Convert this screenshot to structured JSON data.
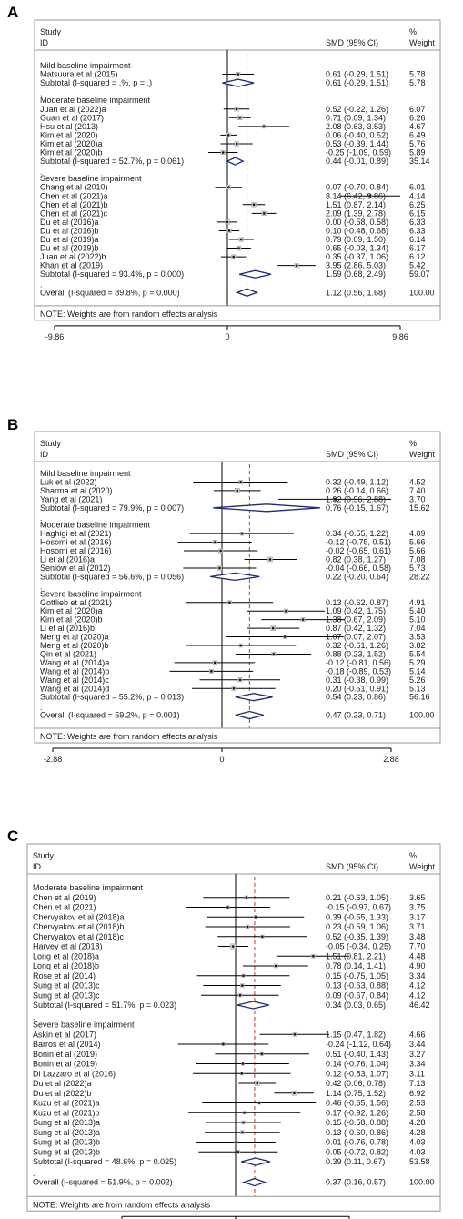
{
  "chart_data": [
    {
      "type": "forest",
      "panel": "A",
      "header": {
        "study": "Study",
        "id": "ID",
        "smd": "SMD (95% CI)",
        "pct": "%",
        "weight": "Weight"
      },
      "xticks": [
        "-9.86",
        "0",
        "9.86"
      ],
      "xlim": [
        -9.86,
        9.86
      ],
      "overall_value": 1.12,
      "note": "NOTE: Weights are from random effects analysis",
      "groups": [
        {
          "title": "Mild baseline impairment",
          "studies": [
            {
              "label": "Matsuura et al (2015)",
              "est": 0.61,
              "lo": -0.29,
              "hi": 1.51,
              "ci": "0.61 (-0.29, 1.51)",
              "weight": "5.78"
            }
          ],
          "subtotal": {
            "label": "Subtotal  (I-squared = .%, p = .)",
            "est": 0.61,
            "lo": -0.29,
            "hi": 1.51,
            "ci": "0.61 (-0.29, 1.51)",
            "weight": "5.78"
          }
        },
        {
          "title": "Moderate baseline impairment",
          "studies": [
            {
              "label": "Juan et al (2022)a",
              "est": 0.52,
              "lo": -0.22,
              "hi": 1.26,
              "ci": "0.52 (-0.22, 1.26)",
              "weight": "6.07"
            },
            {
              "label": "Guan et al (2017)",
              "est": 0.71,
              "lo": 0.09,
              "hi": 1.34,
              "ci": "0.71 (0.09, 1.34)",
              "weight": "6.26"
            },
            {
              "label": "Hsu et al (2013)",
              "est": 2.08,
              "lo": 0.63,
              "hi": 3.53,
              "ci": "2.08 (0.63, 3.53)",
              "weight": "4.67"
            },
            {
              "label": "Kim et al (2020)",
              "est": 0.06,
              "lo": -0.4,
              "hi": 0.52,
              "ci": "0.06 (-0.40, 0.52)",
              "weight": "6.49"
            },
            {
              "label": "Kim et al (2020)a",
              "est": 0.53,
              "lo": -0.39,
              "hi": 1.44,
              "ci": "0.53 (-0.39, 1.44)",
              "weight": "5.76"
            },
            {
              "label": "Kim et al (2020)b",
              "est": -0.25,
              "lo": -1.09,
              "hi": 0.59,
              "ci": "-0.25 (-1.09, 0.59)",
              "weight": "5.89"
            }
          ],
          "subtotal": {
            "label": "Subtotal  (I-squared = 52.7%, p = 0.061)",
            "est": 0.44,
            "lo": -0.01,
            "hi": 0.89,
            "ci": "0.44 (-0.01, 0.89)",
            "weight": "35.14"
          }
        },
        {
          "title": "Severe baseline impairment",
          "studies": [
            {
              "label": "Chang et al (2010)",
              "est": 0.07,
              "lo": -0.7,
              "hi": 0.84,
              "ci": "0.07 (-0.70, 0.84)",
              "weight": "6.01"
            },
            {
              "label": "Chen et al (2021)a",
              "est": 8.14,
              "lo": 6.42,
              "hi": 9.86,
              "ci": "8.14 (6.42, 9.86)",
              "weight": "4.14"
            },
            {
              "label": "Chen et al (2021)b",
              "est": 1.51,
              "lo": 0.87,
              "hi": 2.14,
              "ci": "1.51 (0.87, 2.14)",
              "weight": "6.25"
            },
            {
              "label": "Chen et al (2021)c",
              "est": 2.09,
              "lo": 1.39,
              "hi": 2.78,
              "ci": "2.09 (1.39, 2.78)",
              "weight": "6.15"
            },
            {
              "label": "Du et al (2016)a",
              "est": 0.0,
              "lo": -0.58,
              "hi": 0.58,
              "ci": "0.00 (-0.58, 0.58)",
              "weight": "6.33"
            },
            {
              "label": "Du et al (2016)b",
              "est": 0.1,
              "lo": -0.48,
              "hi": 0.68,
              "ci": "0.10 (-0.48, 0.68)",
              "weight": "6.33"
            },
            {
              "label": "Du et al (2019)a",
              "est": 0.79,
              "lo": 0.09,
              "hi": 1.5,
              "ci": "0.79 (0.09, 1.50)",
              "weight": "6.14"
            },
            {
              "label": "Du et al (2019)b",
              "est": 0.65,
              "lo": -0.03,
              "hi": 1.34,
              "ci": "0.65 (-0.03, 1.34)",
              "weight": "6.17"
            },
            {
              "label": "Juan et al (2022)b",
              "est": 0.35,
              "lo": -0.37,
              "hi": 1.06,
              "ci": "0.35 (-0.37, 1.06)",
              "weight": "6.12"
            },
            {
              "label": "Khan et al (2019)",
              "est": 3.95,
              "lo": 2.86,
              "hi": 5.03,
              "ci": "3.95 (2.86, 5.03)",
              "weight": "5.42"
            }
          ],
          "subtotal": {
            "label": "Subtotal  (I-squared = 93.4%, p = 0.000)",
            "est": 1.59,
            "lo": 0.68,
            "hi": 2.49,
            "ci": "1.59 (0.68, 2.49)",
            "weight": "59.07"
          }
        }
      ],
      "overall": {
        "label": "Overall  (I-squared = 89.8%, p = 0.000)",
        "est": 1.12,
        "lo": 0.56,
        "hi": 1.68,
        "ci": "1.12 (0.56, 1.68)",
        "weight": "100.00"
      }
    },
    {
      "type": "forest",
      "panel": "B",
      "header": {
        "study": "Study",
        "id": "ID",
        "smd": "SMD (95% CI)",
        "pct": "%",
        "weight": "Weight"
      },
      "xticks": [
        "-2.88",
        "0",
        "2.88"
      ],
      "xlim": [
        -2.88,
        2.88
      ],
      "overall_value": 0.47,
      "note": "NOTE: Weights are from random effects analysis",
      "groups": [
        {
          "title": "Mild baseline impairment",
          "studies": [
            {
              "label": "Luk et al (2022)",
              "est": 0.32,
              "lo": -0.49,
              "hi": 1.12,
              "ci": "0.32 (-0.49, 1.12)",
              "weight": "4.52"
            },
            {
              "label": "Sharma et al (2020)",
              "est": 0.26,
              "lo": -0.14,
              "hi": 0.66,
              "ci": "0.26 (-0.14, 0.66)",
              "weight": "7.40"
            },
            {
              "label": "Yang et al (2021)",
              "est": 1.92,
              "lo": 0.96,
              "hi": 2.88,
              "ci": "1.92 (0.96, 2.88)",
              "weight": "3.70"
            }
          ],
          "subtotal": {
            "label": "Subtotal  (I-squared = 79.9%, p = 0.007)",
            "est": 0.76,
            "lo": -0.15,
            "hi": 1.67,
            "ci": "0.76 (-0.15, 1.67)",
            "weight": "15.62"
          }
        },
        {
          "title": "Moderate baseline impairment",
          "studies": [
            {
              "label": "Haghigi et al (2021)",
              "est": 0.34,
              "lo": -0.55,
              "hi": 1.22,
              "ci": "0.34 (-0.55, 1.22)",
              "weight": "4.09"
            },
            {
              "label": "Hosomi et al (2016)",
              "est": -0.12,
              "lo": -0.75,
              "hi": 0.51,
              "ci": "-0.12 (-0.75, 0.51)",
              "weight": "5.66"
            },
            {
              "label": "Hosomi et al (2016)",
              "est": -0.02,
              "lo": -0.65,
              "hi": 0.61,
              "ci": "-0.02 (-0.65, 0.61)",
              "weight": "5.66"
            },
            {
              "label": "Li et al (2016)a",
              "est": 0.82,
              "lo": 0.38,
              "hi": 1.27,
              "ci": "0.82 (0.38, 1.27)",
              "weight": "7.08"
            },
            {
              "label": "Seniów et al (2012)",
              "est": -0.04,
              "lo": -0.66,
              "hi": 0.58,
              "ci": "-0.04 (-0.66, 0.58)",
              "weight": "5.73"
            }
          ],
          "subtotal": {
            "label": "Subtotal  (I-squared = 56.6%, p = 0.056)",
            "est": 0.22,
            "lo": -0.2,
            "hi": 0.64,
            "ci": "0.22 (-0.20, 0.64)",
            "weight": "28.22"
          }
        },
        {
          "title": "Severe baseline impairment",
          "studies": [
            {
              "label": "Gottlieb et al (2021)",
              "est": 0.13,
              "lo": -0.62,
              "hi": 0.87,
              "ci": "0.13 (-0.62, 0.87)",
              "weight": "4.91"
            },
            {
              "label": "Kim et al (2020)a",
              "est": 1.09,
              "lo": 0.42,
              "hi": 1.75,
              "ci": "1.09 (0.42, 1.75)",
              "weight": "5.40"
            },
            {
              "label": "Kim et al (2020)b",
              "est": 1.38,
              "lo": 0.67,
              "hi": 2.09,
              "ci": "1.38 (0.67, 2.09)",
              "weight": "5.10"
            },
            {
              "label": "Li et al (2016)b",
              "est": 0.87,
              "lo": 0.42,
              "hi": 1.32,
              "ci": "0.87 (0.42, 1.32)",
              "weight": "7.04"
            },
            {
              "label": "Meng et al (2020)a",
              "est": 1.07,
              "lo": 0.07,
              "hi": 2.07,
              "ci": "1.07 (0.07, 2.07)",
              "weight": "3.53"
            },
            {
              "label": "Meng et al (2020)b",
              "est": 0.32,
              "lo": -0.61,
              "hi": 1.26,
              "ci": "0.32 (-0.61, 1.26)",
              "weight": "3.82"
            },
            {
              "label": "Qin et al (2021)",
              "est": 0.88,
              "lo": 0.23,
              "hi": 1.52,
              "ci": "0.88 (0.23, 1.52)",
              "weight": "5.54"
            },
            {
              "label": "Wang et al (2014)a",
              "est": -0.12,
              "lo": -0.81,
              "hi": 0.56,
              "ci": "-0.12 (-0.81, 0.56)",
              "weight": "5.29"
            },
            {
              "label": "Wang et al (2014)b",
              "est": -0.18,
              "lo": -0.89,
              "hi": 0.53,
              "ci": "-0.18 (-0.89, 0.53)",
              "weight": "5.14"
            },
            {
              "label": "Wang et al (2014)c",
              "est": 0.31,
              "lo": -0.38,
              "hi": 0.99,
              "ci": "0.31 (-0.38, 0.99)",
              "weight": "5.26"
            },
            {
              "label": "Wang et al (2014)d",
              "est": 0.2,
              "lo": -0.51,
              "hi": 0.91,
              "ci": "0.20 (-0.51, 0.91)",
              "weight": "5.13"
            }
          ],
          "subtotal": {
            "label": "Subtotal  (I-squared = 55.2%, p = 0.013)",
            "est": 0.54,
            "lo": 0.23,
            "hi": 0.86,
            "ci": "0.54 (0.23, 0.86)",
            "weight": "56.16"
          }
        }
      ],
      "overall": {
        "label": "Overall  (I-squared = 59.2%, p = 0.001)",
        "est": 0.47,
        "lo": 0.23,
        "hi": 0.71,
        "ci": "0.47 (0.23, 0.71)",
        "weight": "100.00"
      }
    },
    {
      "type": "forest",
      "panel": "C",
      "header": {
        "study": "Study",
        "id": "ID",
        "smd": "SMD (95% CI)",
        "pct": "%",
        "weight": "Weight"
      },
      "xticks": [
        "-2.21",
        "0",
        "2.21"
      ],
      "xlim": [
        -2.21,
        2.21
      ],
      "overall_value": 0.37,
      "note": "NOTE: Weights are from random effects analysis",
      "groups": [
        {
          "title": "Moderate baseline impairment",
          "studies": [
            {
              "label": "Chen et al (2019)",
              "est": 0.21,
              "lo": -0.63,
              "hi": 1.05,
              "ci": "0.21 (-0.63, 1.05)",
              "weight": "3.65"
            },
            {
              "label": "Chen et al (2021)",
              "est": -0.15,
              "lo": -0.97,
              "hi": 0.67,
              "ci": "-0.15 (-0.97, 0.67)",
              "weight": "3.75"
            },
            {
              "label": "Chervyakov et al (2018)a",
              "est": 0.39,
              "lo": -0.55,
              "hi": 1.33,
              "ci": "0.39 (-0.55, 1.33)",
              "weight": "3.17"
            },
            {
              "label": "Chervyakov et al (2018)b",
              "est": 0.23,
              "lo": -0.59,
              "hi": 1.06,
              "ci": "0.23 (-0.59, 1.06)",
              "weight": "3.71"
            },
            {
              "label": "Chervyakov et al (2018)c",
              "est": 0.52,
              "lo": -0.35,
              "hi": 1.39,
              "ci": "0.52 (-0.35, 1.39)",
              "weight": "3.48"
            },
            {
              "label": "Harvey et al (2018)",
              "est": -0.05,
              "lo": -0.34,
              "hi": 0.25,
              "ci": "-0.05 (-0.34, 0.25)",
              "weight": "7.70"
            },
            {
              "label": "Long et al (2018)a",
              "est": 1.51,
              "lo": 0.81,
              "hi": 2.21,
              "ci": "1.51 (0.81, 2.21)",
              "weight": "4.48"
            },
            {
              "label": "Long et al (2018)b",
              "est": 0.78,
              "lo": 0.14,
              "hi": 1.41,
              "ci": "0.78 (0.14, 1.41)",
              "weight": "4.90"
            },
            {
              "label": "Rose et al (2014)",
              "est": 0.15,
              "lo": -0.75,
              "hi": 1.05,
              "ci": "0.15 (-0.75, 1.05)",
              "weight": "3.34"
            },
            {
              "label": "Sung et al (2013)c",
              "est": 0.13,
              "lo": -0.63,
              "hi": 0.88,
              "ci": "0.13 (-0.63, 0.88)",
              "weight": "4.12"
            },
            {
              "label": "Sung et al (2013)c",
              "est": 0.09,
              "lo": -0.67,
              "hi": 0.84,
              "ci": "0.09 (-0.67, 0.84)",
              "weight": "4.12"
            }
          ],
          "subtotal": {
            "label": "Subtotal  (I-squared = 51.7%, p = 0.023)",
            "est": 0.34,
            "lo": 0.03,
            "hi": 0.65,
            "ci": "0.34 (0.03, 0.65)",
            "weight": "46.42"
          }
        },
        {
          "title": "Severe baseline impairment",
          "studies": [
            {
              "label": "Askin et al (2017)",
              "est": 1.15,
              "lo": 0.47,
              "hi": 1.82,
              "ci": "1.15 (0.47, 1.82)",
              "weight": "4.66"
            },
            {
              "label": "Barros et al (2014)",
              "est": -0.24,
              "lo": -1.12,
              "hi": 0.64,
              "ci": "-0.24 (-1.12, 0.64)",
              "weight": "3.44"
            },
            {
              "label": "Bonin et al (2019)",
              "est": 0.51,
              "lo": -0.4,
              "hi": 1.43,
              "ci": "0.51 (-0.40, 1.43)",
              "weight": "3.27"
            },
            {
              "label": "Bonin et al (2019)",
              "est": 0.14,
              "lo": -0.76,
              "hi": 1.04,
              "ci": "0.14 (-0.76, 1.04)",
              "weight": "3.34"
            },
            {
              "label": "Di Lazzaro et al (2016)",
              "est": 0.12,
              "lo": -0.83,
              "hi": 1.07,
              "ci": "0.12 (-0.83, 1.07)",
              "weight": "3.11"
            },
            {
              "label": "Du et al (2022)a",
              "est": 0.42,
              "lo": 0.06,
              "hi": 0.78,
              "ci": "0.42 (0.06, 0.78)",
              "weight": "7.13"
            },
            {
              "label": "Du et al (2022)b",
              "est": 1.14,
              "lo": 0.75,
              "hi": 1.52,
              "ci": "1.14 (0.75, 1.52)",
              "weight": "6.92"
            },
            {
              "label": "Kuzu et al (2021)a",
              "est": 0.46,
              "lo": -0.65,
              "hi": 1.56,
              "ci": "0.46 (-0.65, 1.56)",
              "weight": "2.53"
            },
            {
              "label": "Kuzu et al (2021)b",
              "est": 0.17,
              "lo": -0.92,
              "hi": 1.26,
              "ci": "0.17 (-0.92, 1.26)",
              "weight": "2.58"
            },
            {
              "label": "Sung et al (2013)a",
              "est": 0.15,
              "lo": -0.58,
              "hi": 0.88,
              "ci": "0.15 (-0.58, 0.88)",
              "weight": "4.28"
            },
            {
              "label": "Sung et al (2013)a",
              "est": 0.13,
              "lo": -0.6,
              "hi": 0.86,
              "ci": "0.13 (-0.60, 0.86)",
              "weight": "4.28"
            },
            {
              "label": "Sung et al (2013)b",
              "est": 0.01,
              "lo": -0.76,
              "hi": 0.78,
              "ci": "0.01 (-0.76, 0.78)",
              "weight": "4.03"
            },
            {
              "label": "Sung et al (2013)b",
              "est": 0.05,
              "lo": -0.72,
              "hi": 0.82,
              "ci": "0.05 (-0.72, 0.82)",
              "weight": "4.03"
            }
          ],
          "subtotal": {
            "label": "Subtotal  (I-squared = 48.6%, p = 0.025)",
            "est": 0.39,
            "lo": 0.11,
            "hi": 0.67,
            "ci": "0.39 (0.11, 0.67)",
            "weight": "53.58"
          }
        }
      ],
      "overall": {
        "label": "Overall  (I-squared = 51.9%, p = 0.002)",
        "est": 0.37,
        "lo": 0.16,
        "hi": 0.57,
        "ci": "0.37 (0.16, 0.57)",
        "weight": "100.00"
      }
    }
  ],
  "colors": {
    "diamond": "#1f2a7a",
    "dashed_line": "#c0392b",
    "point": "#555555",
    "line": "#000000",
    "frame": "#999999"
  }
}
